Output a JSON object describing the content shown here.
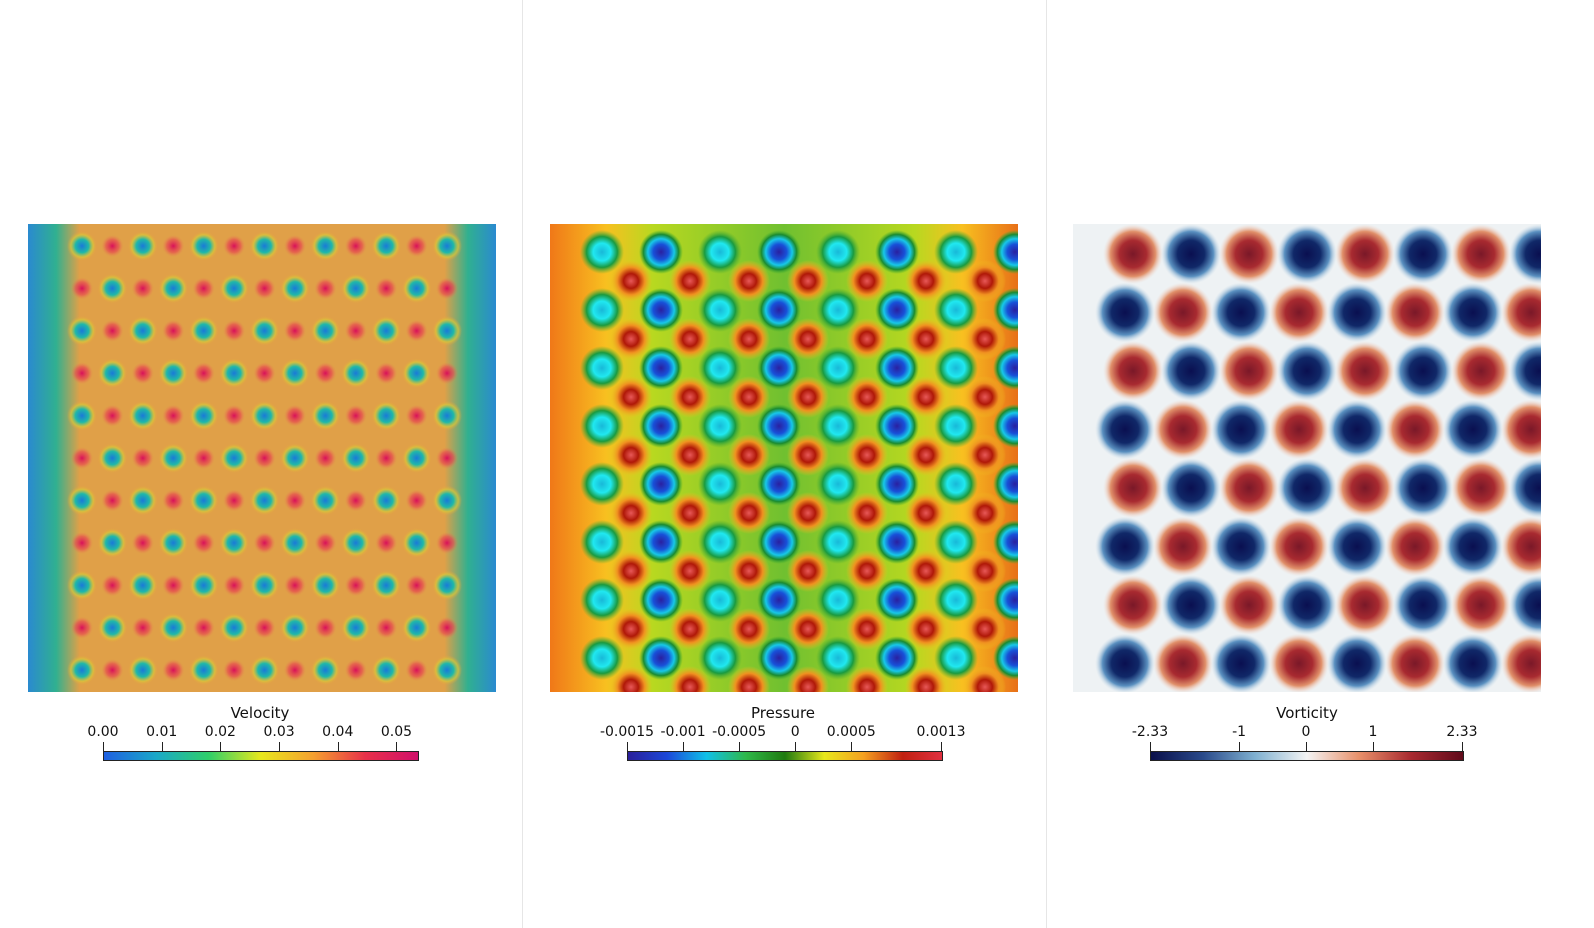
{
  "panels": [
    {
      "id": "velocity",
      "legend_title": "Velocity",
      "tick_labels": [
        "0.00",
        "0.01",
        "0.02",
        "0.03",
        "0.04",
        "0.05"
      ],
      "tick_values": [
        0.0,
        0.01,
        0.02,
        0.03,
        0.04,
        0.05
      ],
      "range": [
        0.0,
        0.0535
      ],
      "colormap": [
        "#1f5fe0",
        "#1aa8c8",
        "#2fcf6a",
        "#e8e81c",
        "#f5a030",
        "#e8304a",
        "#d0106a"
      ]
    },
    {
      "id": "pressure",
      "legend_title": "Pressure",
      "tick_labels": [
        "-0.0015",
        "-0.001",
        "-0.0005",
        "0",
        "0.0005",
        "0.0013"
      ],
      "tick_values": [
        -0.0015,
        -0.001,
        -0.0005,
        0,
        0.0005,
        0.0013
      ],
      "range": [
        -0.0015,
        0.0013
      ],
      "colormap": [
        "#2a1f9a",
        "#1c48d8",
        "#10c0e8",
        "#2fb84a",
        "#1f7a10",
        "#e8e81c",
        "#f5a020",
        "#c02010",
        "#e03040"
      ]
    },
    {
      "id": "vorticity",
      "legend_title": "Vorticity",
      "tick_labels": [
        "-2.33",
        "-1",
        "0",
        "1",
        "2.33"
      ],
      "tick_values": [
        -2.33,
        -1,
        0,
        1,
        2.33
      ],
      "range": [
        -2.33,
        2.33
      ],
      "colormap": [
        "#0a0f4a",
        "#2a4a8a",
        "#7fb0d0",
        "#f4f4f4",
        "#e8906a",
        "#a82a30",
        "#600a1a"
      ]
    }
  ]
}
